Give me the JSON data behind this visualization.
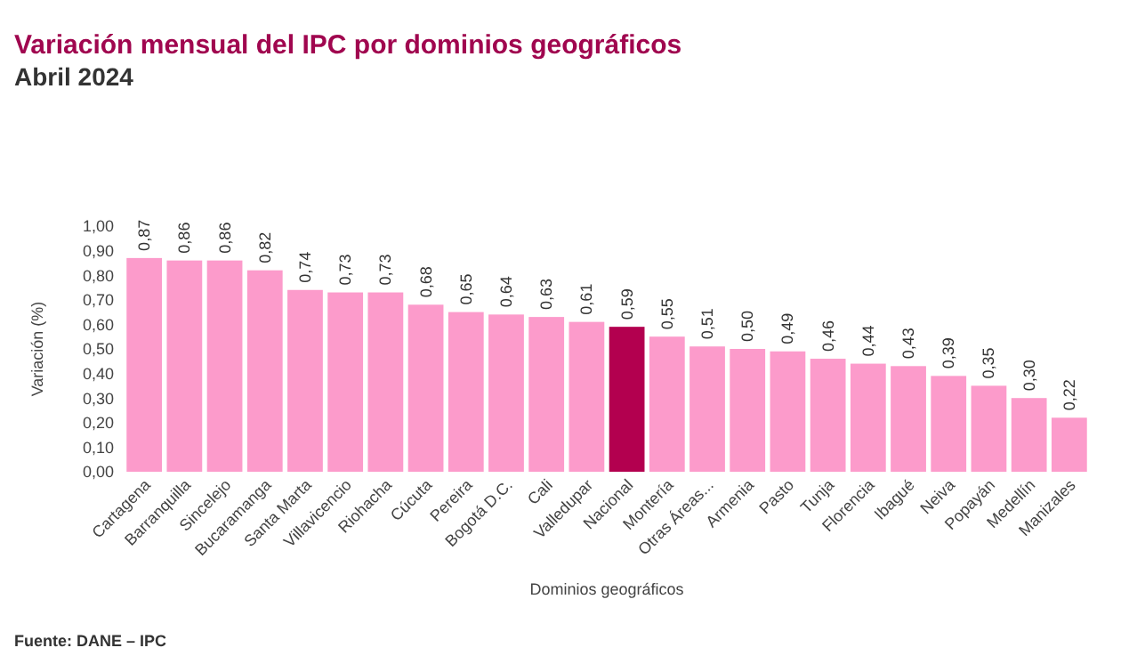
{
  "chart_data": {
    "type": "bar",
    "title": "Variación mensual del IPC por dominios geográficos",
    "subtitle": "Abril 2024",
    "xlabel": "Dominios geográficos",
    "ylabel": "Variación (%)",
    "annotations": [
      "Fuente: DANE – IPC"
    ],
    "categories": [
      "Cartagena",
      "Barranquilla",
      "Sincelejo",
      "Bucaramanga",
      "Santa Marta",
      "Villavicencio",
      "Riohacha",
      "Cúcuta",
      "Pereira",
      "Bogotá D.C.",
      "Cali",
      "Valledupar",
      "Nacional",
      "Montería",
      "Otras Áreas...",
      "Armenia",
      "Pasto",
      "Tunja",
      "Florencia",
      "Ibagué",
      "Neiva",
      "Popayán",
      "Medellín",
      "Manizales"
    ],
    "values": [
      0.87,
      0.86,
      0.86,
      0.82,
      0.74,
      0.73,
      0.73,
      0.68,
      0.65,
      0.64,
      0.63,
      0.61,
      0.59,
      0.55,
      0.51,
      0.5,
      0.49,
      0.46,
      0.44,
      0.43,
      0.39,
      0.35,
      0.3,
      0.22
    ],
    "colors": [
      "#fc9bcb",
      "#fc9bcb",
      "#fc9bcb",
      "#fc9bcb",
      "#fc9bcb",
      "#fc9bcb",
      "#fc9bcb",
      "#fc9bcb",
      "#fc9bcb",
      "#fc9bcb",
      "#fc9bcb",
      "#fc9bcb",
      "#b3004f",
      "#fc9bcb",
      "#fc9bcb",
      "#fc9bcb",
      "#fc9bcb",
      "#fc9bcb",
      "#fc9bcb",
      "#fc9bcb",
      "#fc9bcb",
      "#fc9bcb",
      "#fc9bcb",
      "#fc9bcb"
    ],
    "value_labels": [
      "0,87",
      "0,86",
      "0,86",
      "0,82",
      "0,74",
      "0,73",
      "0,73",
      "0,68",
      "0,65",
      "0,64",
      "0,63",
      "0,61",
      "0,59",
      "0,55",
      "0,51",
      "0,50",
      "0,49",
      "0,46",
      "0,44",
      "0,43",
      "0,39",
      "0,35",
      "0,30",
      "0,22"
    ],
    "ylim": [
      0,
      1
    ],
    "yticks": [
      {
        "value": 0,
        "label": "0,00"
      },
      {
        "value": 0.1,
        "label": "0,10"
      },
      {
        "value": 0.2,
        "label": "0,20"
      },
      {
        "value": 0.3,
        "label": "0,30"
      },
      {
        "value": 0.4,
        "label": "0,40"
      },
      {
        "value": 0.5,
        "label": "0,50"
      },
      {
        "value": 0.6,
        "label": "0,60"
      },
      {
        "value": 0.7,
        "label": "0,70"
      },
      {
        "value": 0.8,
        "label": "0,80"
      },
      {
        "value": 0.9,
        "label": "0,90"
      },
      {
        "value": 1,
        "label": "1,00"
      }
    ]
  }
}
